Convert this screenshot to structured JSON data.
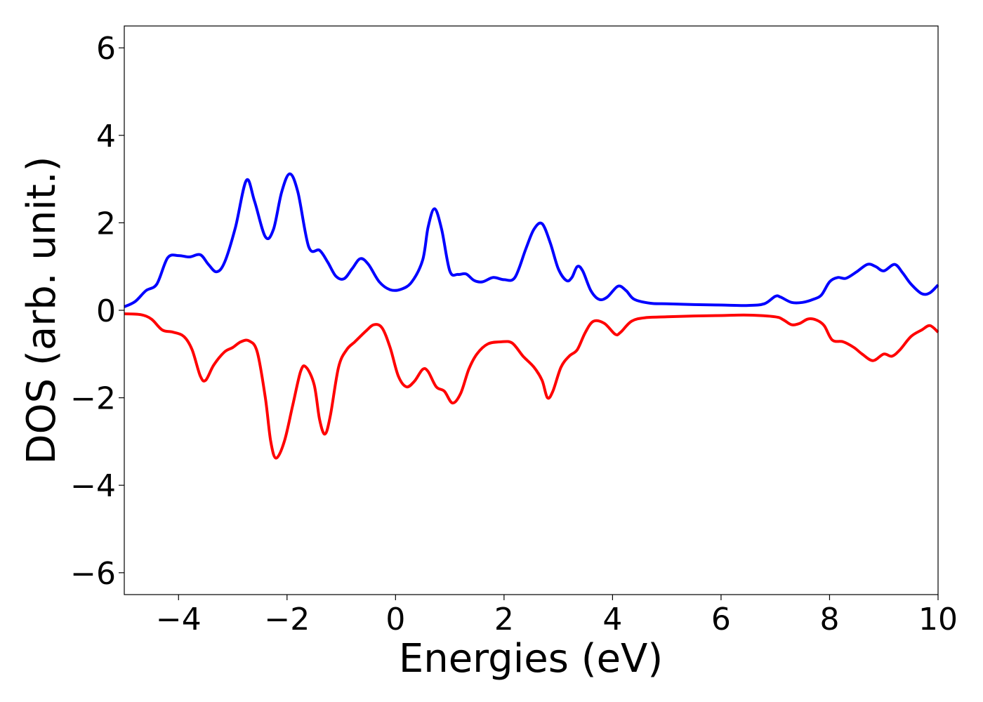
{
  "chart_data": {
    "type": "line",
    "xlabel": "Energies (eV)",
    "ylabel": "DOS (arb. unit.)",
    "xlim": [
      -5,
      10
    ],
    "ylim": [
      -6.5,
      6.5
    ],
    "xticks": [
      -4,
      -2,
      0,
      2,
      4,
      6,
      8,
      10
    ],
    "xtick_labels": [
      "−4",
      "−2",
      "0",
      "2",
      "4",
      "6",
      "8",
      "10"
    ],
    "yticks": [
      -6,
      -4,
      -2,
      0,
      2,
      4,
      6
    ],
    "ytick_labels": [
      "−6",
      "−4",
      "−2",
      "0",
      "2",
      "4",
      "6"
    ],
    "grid": false,
    "legend": "none",
    "series": [
      {
        "color": "#0000ff",
        "points": [
          [
            -5.0,
            0.08
          ],
          [
            -4.8,
            0.2
          ],
          [
            -4.6,
            0.45
          ],
          [
            -4.4,
            0.6
          ],
          [
            -4.2,
            1.2
          ],
          [
            -4.0,
            1.25
          ],
          [
            -3.8,
            1.22
          ],
          [
            -3.6,
            1.27
          ],
          [
            -3.45,
            1.05
          ],
          [
            -3.3,
            0.88
          ],
          [
            -3.15,
            1.1
          ],
          [
            -2.95,
            1.9
          ],
          [
            -2.75,
            2.97
          ],
          [
            -2.6,
            2.5
          ],
          [
            -2.4,
            1.68
          ],
          [
            -2.25,
            1.85
          ],
          [
            -2.1,
            2.7
          ],
          [
            -1.95,
            3.12
          ],
          [
            -1.8,
            2.7
          ],
          [
            -1.6,
            1.45
          ],
          [
            -1.4,
            1.37
          ],
          [
            -1.25,
            1.1
          ],
          [
            -1.1,
            0.78
          ],
          [
            -0.95,
            0.72
          ],
          [
            -0.8,
            0.95
          ],
          [
            -0.65,
            1.18
          ],
          [
            -0.5,
            1.05
          ],
          [
            -0.3,
            0.65
          ],
          [
            -0.1,
            0.47
          ],
          [
            0.1,
            0.48
          ],
          [
            0.3,
            0.65
          ],
          [
            0.5,
            1.15
          ],
          [
            0.6,
            1.9
          ],
          [
            0.72,
            2.32
          ],
          [
            0.85,
            1.85
          ],
          [
            1.0,
            0.9
          ],
          [
            1.15,
            0.82
          ],
          [
            1.3,
            0.83
          ],
          [
            1.45,
            0.68
          ],
          [
            1.6,
            0.65
          ],
          [
            1.8,
            0.75
          ],
          [
            2.0,
            0.7
          ],
          [
            2.2,
            0.75
          ],
          [
            2.4,
            1.4
          ],
          [
            2.55,
            1.85
          ],
          [
            2.7,
            1.98
          ],
          [
            2.85,
            1.55
          ],
          [
            3.0,
            0.95
          ],
          [
            3.15,
            0.68
          ],
          [
            3.25,
            0.75
          ],
          [
            3.35,
            1.0
          ],
          [
            3.45,
            0.9
          ],
          [
            3.6,
            0.45
          ],
          [
            3.75,
            0.25
          ],
          [
            3.9,
            0.3
          ],
          [
            4.1,
            0.55
          ],
          [
            4.25,
            0.45
          ],
          [
            4.4,
            0.25
          ],
          [
            4.7,
            0.16
          ],
          [
            5.0,
            0.15
          ],
          [
            5.5,
            0.13
          ],
          [
            6.0,
            0.12
          ],
          [
            6.5,
            0.11
          ],
          [
            6.8,
            0.15
          ],
          [
            7.0,
            0.32
          ],
          [
            7.1,
            0.3
          ],
          [
            7.3,
            0.18
          ],
          [
            7.5,
            0.18
          ],
          [
            7.7,
            0.25
          ],
          [
            7.85,
            0.35
          ],
          [
            8.0,
            0.65
          ],
          [
            8.15,
            0.75
          ],
          [
            8.3,
            0.73
          ],
          [
            8.5,
            0.88
          ],
          [
            8.7,
            1.05
          ],
          [
            8.85,
            1.0
          ],
          [
            9.0,
            0.9
          ],
          [
            9.2,
            1.05
          ],
          [
            9.35,
            0.85
          ],
          [
            9.5,
            0.6
          ],
          [
            9.7,
            0.38
          ],
          [
            9.85,
            0.4
          ],
          [
            10.0,
            0.58
          ]
        ]
      },
      {
        "color": "#ff0000",
        "points": [
          [
            -5.0,
            -0.08
          ],
          [
            -4.7,
            -0.1
          ],
          [
            -4.5,
            -0.2
          ],
          [
            -4.3,
            -0.45
          ],
          [
            -4.1,
            -0.5
          ],
          [
            -3.9,
            -0.6
          ],
          [
            -3.75,
            -0.9
          ],
          [
            -3.6,
            -1.5
          ],
          [
            -3.5,
            -1.6
          ],
          [
            -3.35,
            -1.25
          ],
          [
            -3.15,
            -0.95
          ],
          [
            -3.0,
            -0.85
          ],
          [
            -2.85,
            -0.72
          ],
          [
            -2.7,
            -0.7
          ],
          [
            -2.55,
            -0.95
          ],
          [
            -2.4,
            -2.0
          ],
          [
            -2.3,
            -3.0
          ],
          [
            -2.2,
            -3.38
          ],
          [
            -2.05,
            -3.0
          ],
          [
            -1.9,
            -2.2
          ],
          [
            -1.75,
            -1.4
          ],
          [
            -1.65,
            -1.3
          ],
          [
            -1.5,
            -1.7
          ],
          [
            -1.4,
            -2.5
          ],
          [
            -1.3,
            -2.83
          ],
          [
            -1.2,
            -2.4
          ],
          [
            -1.05,
            -1.3
          ],
          [
            -0.9,
            -0.9
          ],
          [
            -0.75,
            -0.72
          ],
          [
            -0.55,
            -0.48
          ],
          [
            -0.4,
            -0.33
          ],
          [
            -0.25,
            -0.4
          ],
          [
            -0.1,
            -0.85
          ],
          [
            0.05,
            -1.5
          ],
          [
            0.2,
            -1.75
          ],
          [
            0.35,
            -1.62
          ],
          [
            0.5,
            -1.35
          ],
          [
            0.6,
            -1.4
          ],
          [
            0.75,
            -1.75
          ],
          [
            0.9,
            -1.85
          ],
          [
            1.05,
            -2.12
          ],
          [
            1.2,
            -1.9
          ],
          [
            1.35,
            -1.35
          ],
          [
            1.5,
            -1.0
          ],
          [
            1.7,
            -0.77
          ],
          [
            1.95,
            -0.72
          ],
          [
            2.15,
            -0.75
          ],
          [
            2.35,
            -1.05
          ],
          [
            2.55,
            -1.3
          ],
          [
            2.7,
            -1.6
          ],
          [
            2.8,
            -2.0
          ],
          [
            2.9,
            -1.85
          ],
          [
            3.05,
            -1.3
          ],
          [
            3.2,
            -1.05
          ],
          [
            3.35,
            -0.9
          ],
          [
            3.5,
            -0.5
          ],
          [
            3.65,
            -0.25
          ],
          [
            3.85,
            -0.3
          ],
          [
            4.05,
            -0.55
          ],
          [
            4.15,
            -0.5
          ],
          [
            4.35,
            -0.25
          ],
          [
            4.6,
            -0.17
          ],
          [
            5.0,
            -0.15
          ],
          [
            5.5,
            -0.13
          ],
          [
            6.0,
            -0.12
          ],
          [
            6.5,
            -0.11
          ],
          [
            7.0,
            -0.15
          ],
          [
            7.15,
            -0.22
          ],
          [
            7.3,
            -0.33
          ],
          [
            7.45,
            -0.3
          ],
          [
            7.6,
            -0.2
          ],
          [
            7.75,
            -0.22
          ],
          [
            7.9,
            -0.35
          ],
          [
            8.05,
            -0.68
          ],
          [
            8.25,
            -0.72
          ],
          [
            8.45,
            -0.85
          ],
          [
            8.6,
            -1.0
          ],
          [
            8.8,
            -1.15
          ],
          [
            9.0,
            -1.0
          ],
          [
            9.15,
            -1.05
          ],
          [
            9.3,
            -0.9
          ],
          [
            9.5,
            -0.6
          ],
          [
            9.7,
            -0.45
          ],
          [
            9.85,
            -0.35
          ],
          [
            10.0,
            -0.5
          ]
        ]
      }
    ]
  }
}
